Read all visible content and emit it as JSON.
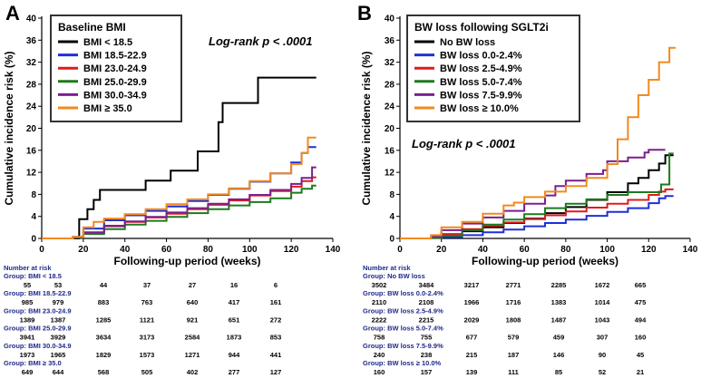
{
  "chart_data": [
    {
      "type": "line",
      "panel_label": "A",
      "xlabel": "Following-up period (weeks)",
      "ylabel": "Cumulative incidence risk (%)",
      "xlim": [
        0,
        140
      ],
      "ylim": [
        0,
        40
      ],
      "xticks": [
        0,
        20,
        40,
        60,
        80,
        100,
        120,
        140
      ],
      "yticks": [
        0,
        4,
        8,
        12,
        16,
        20,
        24,
        28,
        32,
        36,
        40
      ],
      "legend_title": "Baseline BMI",
      "legend_position": "top-left",
      "annotation": "Log-rank p < .0001",
      "series": [
        {
          "name": "BMI < 18.5",
          "color": "#000000",
          "x": [
            0,
            17,
            18,
            20,
            22,
            24,
            25,
            28,
            48,
            50,
            62,
            72,
            75,
            80,
            85,
            87,
            94,
            103,
            104,
            132
          ],
          "y": [
            0,
            0,
            3.5,
            3.5,
            5.3,
            5.3,
            7,
            8.8,
            8.8,
            10.5,
            12.3,
            12.3,
            15.8,
            15.8,
            21.1,
            24.6,
            24.6,
            24.6,
            29.2,
            29.2
          ]
        },
        {
          "name": "BMI 18.5-22.9",
          "color": "#1f2fd6",
          "x": [
            0,
            15,
            20,
            30,
            40,
            50,
            60,
            70,
            80,
            90,
            100,
            110,
            120,
            125,
            128,
            132
          ],
          "y": [
            0,
            0.3,
            1.8,
            3.3,
            4.2,
            5.0,
            5.8,
            6.8,
            7.9,
            9.0,
            10.3,
            11.8,
            13.8,
            15.5,
            16.6,
            16.6
          ]
        },
        {
          "name": "BMI 23.0-24.9",
          "color": "#e01b1b",
          "x": [
            0,
            15,
            20,
            30,
            40,
            50,
            60,
            70,
            80,
            90,
            100,
            110,
            120,
            125,
            130,
            132
          ],
          "y": [
            0,
            0.2,
            1.0,
            2.2,
            3.0,
            3.8,
            4.5,
            5.3,
            6.1,
            6.9,
            7.8,
            8.6,
            9.4,
            10.4,
            11.1,
            11.1
          ]
        },
        {
          "name": "BMI 25.0-29.9",
          "color": "#1d7a1d",
          "x": [
            0,
            15,
            20,
            30,
            40,
            50,
            60,
            70,
            80,
            90,
            100,
            110,
            120,
            125,
            130,
            132
          ],
          "y": [
            0,
            0.1,
            0.8,
            1.7,
            2.5,
            3.2,
            3.9,
            4.6,
            5.3,
            6.0,
            6.6,
            7.3,
            8.3,
            9.0,
            9.6,
            9.6
          ]
        },
        {
          "name": "BMI 30.0-34.9",
          "color": "#7b1f8f",
          "x": [
            0,
            15,
            20,
            30,
            40,
            50,
            60,
            70,
            80,
            90,
            100,
            110,
            120,
            125,
            130,
            132
          ],
          "y": [
            0,
            0.2,
            1.1,
            2.3,
            3.1,
            3.9,
            4.7,
            5.5,
            6.3,
            7.1,
            7.9,
            8.8,
            9.9,
            11.0,
            12.9,
            12.9
          ]
        },
        {
          "name": "BMI ≥ 35.0",
          "color": "#f28a1d",
          "x": [
            0,
            15,
            20,
            25,
            30,
            40,
            50,
            60,
            70,
            80,
            90,
            100,
            110,
            120,
            125,
            128,
            132
          ],
          "y": [
            0,
            0.3,
            2.0,
            3.0,
            3.6,
            4.4,
            5.3,
            6.2,
            7.1,
            8.0,
            9.1,
            10.4,
            11.8,
            13.5,
            15.5,
            18.3,
            18.3
          ]
        }
      ],
      "risk_table": {
        "header": "Number at risk",
        "groups": [
          {
            "label": "Group: BMI < 18.5",
            "values": [
              "55",
              "53",
              "44",
              "37",
              "27",
              "16",
              "6"
            ]
          },
          {
            "label": "Group: BMI 18.5-22.9",
            "values": [
              "985",
              "979",
              "883",
              "763",
              "640",
              "417",
              "161"
            ]
          },
          {
            "label": "Group: BMI 23.0-24.9",
            "values": [
              "1389",
              "1387",
              "1285",
              "1121",
              "921",
              "651",
              "272"
            ]
          },
          {
            "label": "Group: BMI 25.0-29.9",
            "values": [
              "3941",
              "3929",
              "3634",
              "3173",
              "2584",
              "1873",
              "853"
            ]
          },
          {
            "label": "Group: BMI 30.0-34.9",
            "values": [
              "1973",
              "1965",
              "1829",
              "1573",
              "1271",
              "944",
              "441"
            ]
          },
          {
            "label": "Group: BMI ≥ 35.0",
            "values": [
              "649",
              "644",
              "568",
              "505",
              "402",
              "277",
              "127"
            ]
          }
        ]
      }
    },
    {
      "type": "line",
      "panel_label": "B",
      "xlabel": "Following-up period (weeks)",
      "ylabel": "Cumulative incidence risk (%)",
      "xlim": [
        0,
        140
      ],
      "ylim": [
        0,
        40
      ],
      "xticks": [
        0,
        20,
        40,
        60,
        80,
        100,
        120,
        140
      ],
      "yticks": [
        0,
        4,
        8,
        12,
        16,
        20,
        24,
        28,
        32,
        36,
        40
      ],
      "legend_title": "BW loss following SGLT2i",
      "legend_position": "top-left",
      "annotation": "Log-rank p < .0001",
      "series": [
        {
          "name": "No BW loss",
          "color": "#000000",
          "x": [
            0,
            15,
            20,
            30,
            40,
            50,
            60,
            70,
            80,
            90,
            100,
            110,
            115,
            120,
            125,
            128,
            132
          ],
          "y": [
            0,
            0.1,
            0.6,
            1.3,
            2.0,
            2.8,
            3.6,
            4.6,
            5.7,
            7.0,
            8.4,
            10.0,
            11.0,
            12.4,
            13.6,
            15.1,
            15.1
          ]
        },
        {
          "name": "BW loss 0.0-2.4%",
          "color": "#1f2fd6",
          "x": [
            0,
            15,
            20,
            30,
            40,
            50,
            60,
            70,
            80,
            90,
            100,
            110,
            120,
            125,
            128,
            132
          ],
          "y": [
            0,
            0.1,
            0.2,
            0.6,
            1.1,
            1.6,
            2.2,
            2.8,
            3.4,
            4.1,
            4.8,
            5.5,
            6.4,
            7.3,
            7.7,
            7.7
          ]
        },
        {
          "name": "BW loss 2.5-4.9%",
          "color": "#e01b1b",
          "x": [
            0,
            15,
            20,
            30,
            40,
            50,
            60,
            70,
            80,
            90,
            100,
            110,
            120,
            125,
            128,
            132
          ],
          "y": [
            0,
            0.1,
            0.8,
            1.7,
            2.3,
            2.9,
            3.5,
            4.2,
            4.9,
            5.6,
            6.3,
            7.0,
            7.9,
            8.5,
            8.9,
            8.9
          ]
        },
        {
          "name": "BW loss 5.0-7.4%",
          "color": "#1d7a1d",
          "x": [
            0,
            15,
            20,
            30,
            40,
            50,
            60,
            70,
            80,
            90,
            100,
            110,
            120,
            126,
            130,
            132
          ],
          "y": [
            0,
            0.1,
            0.5,
            1.5,
            2.5,
            3.4,
            4.4,
            5.5,
            6.3,
            7.1,
            7.9,
            8.4,
            8.4,
            9.8,
            15.4,
            15.4
          ]
        },
        {
          "name": "BW loss 7.5-9.9%",
          "color": "#7b1f8f",
          "x": [
            0,
            15,
            20,
            30,
            40,
            50,
            60,
            70,
            75,
            80,
            90,
            98,
            100,
            110,
            118,
            120,
            128
          ],
          "y": [
            0,
            0.4,
            1.5,
            2.7,
            3.8,
            5.0,
            6.3,
            7.8,
            9.5,
            10.5,
            11.7,
            12.4,
            14.0,
            14.7,
            15.6,
            16.1,
            16.1
          ]
        },
        {
          "name": "BW loss ≥ 10.0%",
          "color": "#f28a1d",
          "x": [
            0,
            15,
            20,
            30,
            40,
            50,
            55,
            60,
            70,
            80,
            90,
            100,
            105,
            110,
            115,
            120,
            125,
            130,
            133
          ],
          "y": [
            0,
            0.6,
            2.0,
            3.0,
            4.5,
            6.0,
            6.5,
            7.5,
            8.5,
            9.5,
            11.0,
            13.5,
            18.0,
            22.0,
            26.0,
            28.8,
            32.0,
            34.6,
            34.6
          ]
        }
      ],
      "risk_table": {
        "header": "Number at risk",
        "groups": [
          {
            "label": "Group: No BW loss",
            "values": [
              "3502",
              "3484",
              "3217",
              "2771",
              "2285",
              "1672",
              "665"
            ]
          },
          {
            "label": "Group: BW loss 0.0-2.4%",
            "values": [
              "2110",
              "2108",
              "1966",
              "1716",
              "1383",
              "1014",
              "475"
            ]
          },
          {
            "label": "Group: BW loss 2.5-4.9%",
            "values": [
              "2222",
              "2215",
              "2029",
              "1808",
              "1487",
              "1043",
              "494"
            ]
          },
          {
            "label": "Group: BW loss 5.0-7.4%",
            "values": [
              "758",
              "755",
              "677",
              "579",
              "459",
              "307",
              "160"
            ]
          },
          {
            "label": "Group: BW loss 7.5-9.9%",
            "values": [
              "240",
              "238",
              "215",
              "187",
              "146",
              "90",
              "45"
            ]
          },
          {
            "label": "Group: BW loss ≥ 10.0%",
            "values": [
              "160",
              "157",
              "139",
              "111",
              "85",
              "52",
              "21"
            ]
          }
        ]
      }
    }
  ]
}
